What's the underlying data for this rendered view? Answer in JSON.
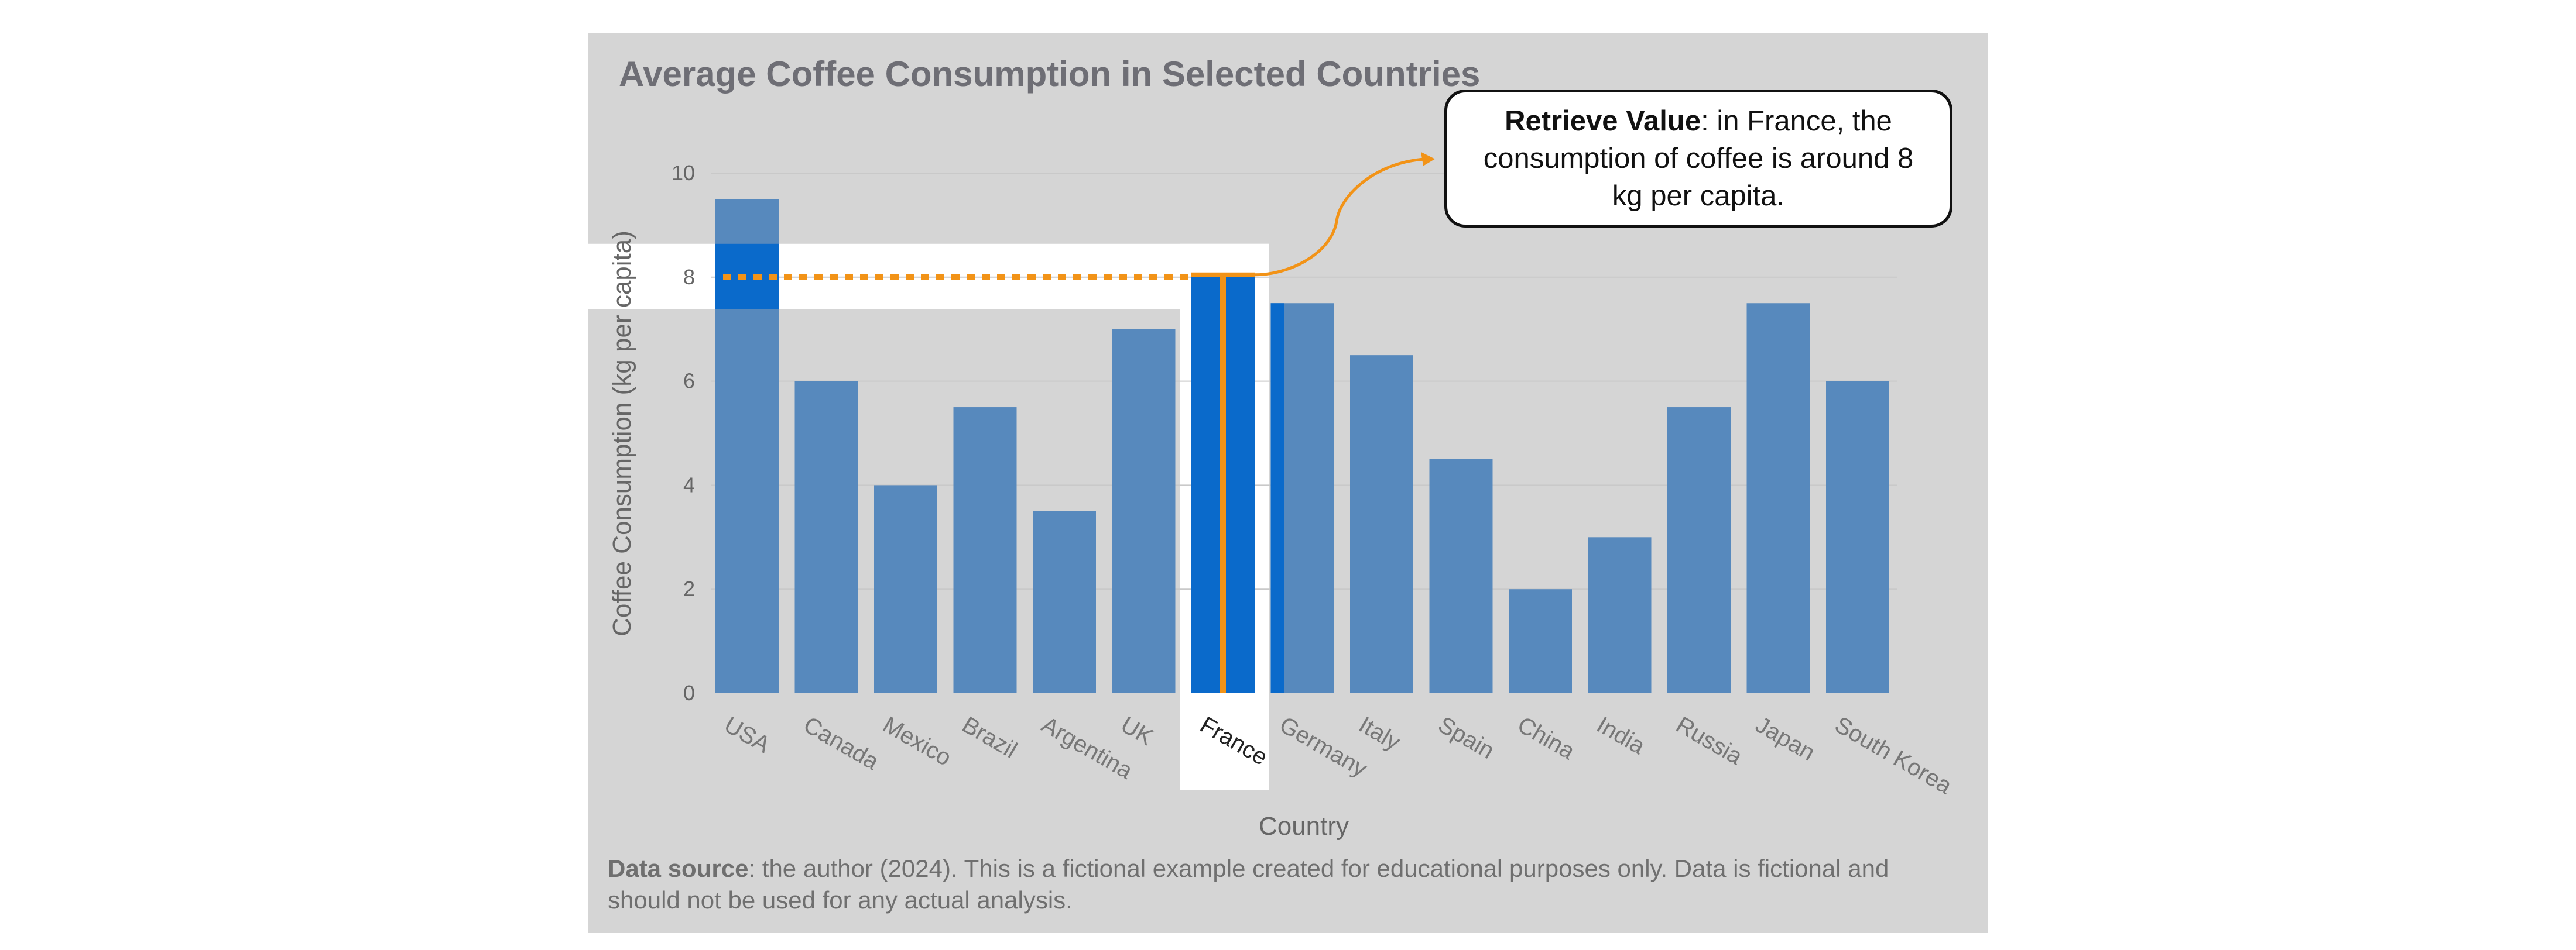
{
  "chart_data": {
    "type": "bar",
    "title": "Average Coffee Consumption in Selected Countries",
    "xlabel": "Country",
    "ylabel": "Coffee Consumption (kg per capita)",
    "categories": [
      "USA",
      "Canada",
      "Mexico",
      "Brazil",
      "Argentina",
      "UK",
      "France",
      "Germany",
      "Italy",
      "Spain",
      "China",
      "India",
      "Russia",
      "Japan",
      "South Korea"
    ],
    "values": [
      9.5,
      6,
      4,
      5.5,
      3.5,
      7,
      8,
      7.5,
      6.5,
      4.5,
      2,
      3,
      5.5,
      7.5,
      6
    ],
    "ylim": [
      0,
      10
    ],
    "yticks": [
      0,
      2,
      4,
      6,
      8,
      10
    ],
    "grid": true,
    "highlight": {
      "category": "France",
      "value": 8
    },
    "annotation": {
      "bold": "Retrieve Value",
      "text": ": in France, the consumption of coffee is around 8 kg per capita."
    },
    "colors": {
      "bar": "#5789bd",
      "bar_highlight": "#0a6acb",
      "accent": "#f29317",
      "panel": "#d5d5d5"
    }
  },
  "footer": {
    "source_label": "Data source",
    "source_text": ": the author (2024). This is a fictional example created for educational purposes only. Data is fictional and should not be used for any actual analysis."
  }
}
